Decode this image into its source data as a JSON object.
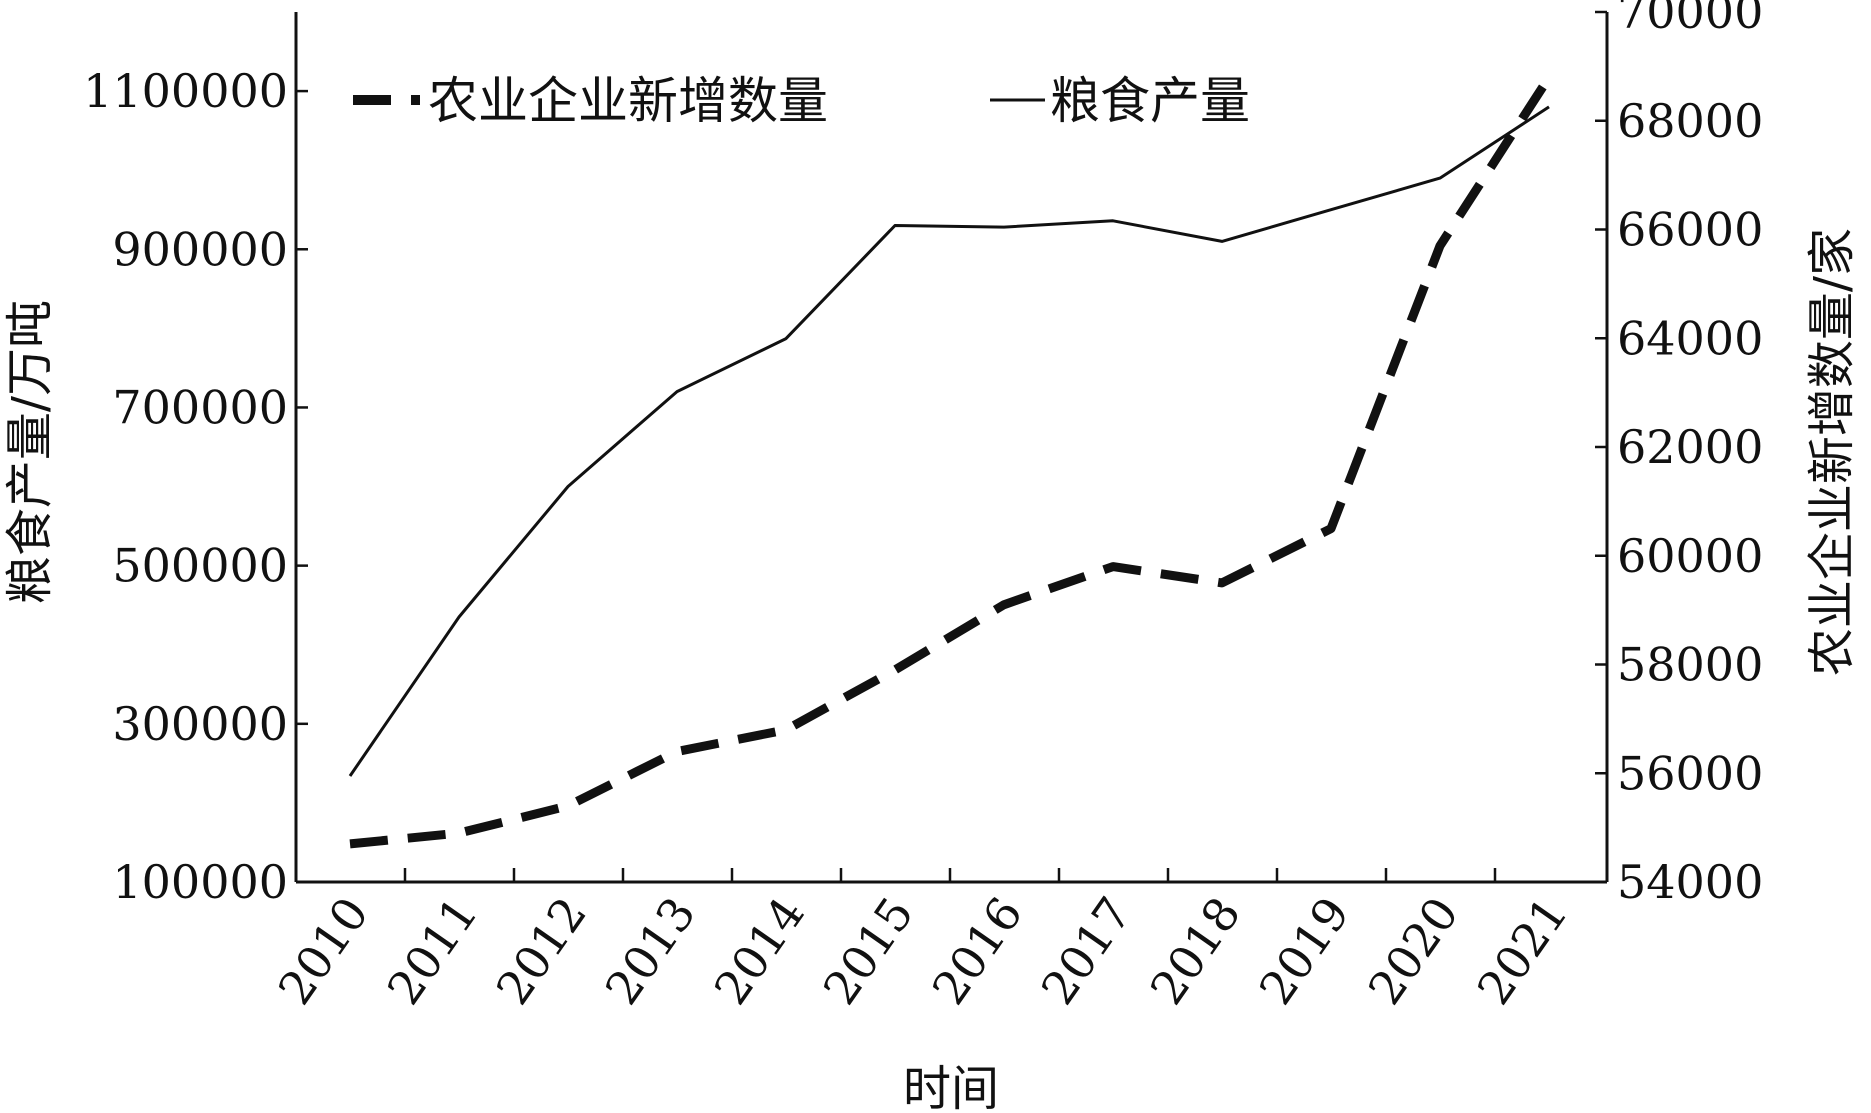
{
  "chart_data": {
    "type": "line",
    "title": "",
    "xlabel": "时间",
    "ylabel_left": "粮食产量/万吨",
    "ylabel_right": "农业企业新增数量/家",
    "x": [
      "2010",
      "2011",
      "2012",
      "2013",
      "2014",
      "2015",
      "2016",
      "2017",
      "2018",
      "2019",
      "2020",
      "2021"
    ],
    "y_left": {
      "ylim": [
        100000,
        1200000
      ],
      "ticks": [
        100000,
        300000,
        500000,
        700000,
        900000,
        1100000
      ]
    },
    "y_right": {
      "ylim": [
        54000,
        70000
      ],
      "ticks": [
        54000,
        56000,
        58000,
        60000,
        62000,
        64000,
        66000,
        68000,
        70000
      ]
    },
    "series": [
      {
        "name": "农业企业新增数量",
        "axis": "right",
        "style": "dashed",
        "values": [
          54700,
          54900,
          55400,
          56400,
          56800,
          57900,
          59100,
          59800,
          59500,
          60500,
          65700,
          68800
        ]
      },
      {
        "name": "粮食产量",
        "axis": "left",
        "style": "solid",
        "values": [
          234000,
          435000,
          600000,
          720000,
          787000,
          930000,
          928000,
          936000,
          910000,
          950000,
          990000,
          1080000
        ]
      }
    ],
    "legend": {
      "placement": "top-left"
    },
    "grid": false
  }
}
